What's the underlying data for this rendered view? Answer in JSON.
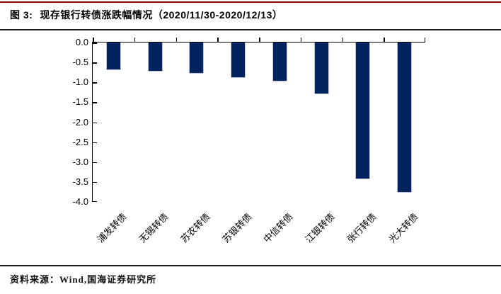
{
  "figure": {
    "title_prefix": "图 3:",
    "title": "现存银行转债涨跌幅情况（2020/11/30-2020/12/13）",
    "source": "资料来源：Wind,国海证券研究所"
  },
  "colors": {
    "top_rule": "#8b0000",
    "divider": "#1a1a1a",
    "bar_fill": "#02245e",
    "bar_edge": "#c4c4d4",
    "axis": "#000000"
  },
  "chart_data": {
    "type": "bar",
    "title": "现存银行转债涨跌幅情况（2020/11/30-2020/12/13）",
    "categories": [
      "浦发转债",
      "无锡转债",
      "苏农转债",
      "苏银转债",
      "中信转债",
      "江银转债",
      "张行转债",
      "光大转债"
    ],
    "values": [
      -0.7,
      -0.72,
      -0.78,
      -0.89,
      -0.98,
      -1.3,
      -3.43,
      -3.77
    ],
    "ylim": [
      -4.0,
      0.0
    ],
    "ytick_step": 0.5,
    "y_tick_labels": [
      "0.0",
      "-0.5",
      "-1.0",
      "-1.5",
      "-2.0",
      "-2.5",
      "-3.0",
      "-3.5",
      "-4.0"
    ],
    "xlabel": "",
    "ylabel": "",
    "grid": false,
    "legend_position": "none",
    "x_label_rotation_deg": -45
  }
}
